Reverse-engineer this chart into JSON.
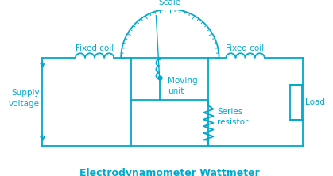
{
  "title": "Electrodynamometer Wattmeter",
  "title_color": "#00AACC",
  "diagram_color": "#00AACC",
  "bg_color": "#FFFFFF",
  "labels": {
    "scale": "Scale",
    "fixed_coil_left": "Fixed coil",
    "fixed_coil_right": "Fixed coil",
    "supply_voltage": "Supply\nvoltage",
    "moving_unit": "Moving\nunit",
    "series_resistor": "Series\nresistor",
    "load": "Load"
  },
  "figsize": [
    4.19,
    2.22
  ],
  "dpi": 100
}
